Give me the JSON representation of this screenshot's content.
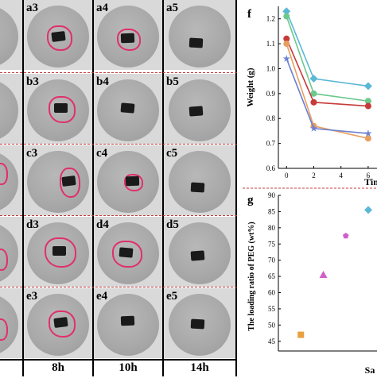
{
  "row_labels": [
    [
      "a3",
      "a4",
      "a5"
    ],
    [
      "b3",
      "b4",
      "b5"
    ],
    [
      "c3",
      "c4",
      "c5"
    ],
    [
      "d3",
      "d4",
      "d5"
    ],
    [
      "e3",
      "e4",
      "e5"
    ]
  ],
  "time_labels": [
    "8h",
    "10h",
    "14h"
  ],
  "panel_f": {
    "label": "f",
    "ylabel": "Weight (g)",
    "xlabel": "Tin",
    "yticks": [
      "0.6",
      "0.7",
      "0.8",
      "0.9",
      "1.0",
      "1.1",
      "1.2"
    ],
    "xticks": [
      "0",
      "2",
      "4",
      "6"
    ]
  },
  "panel_g": {
    "label": "g",
    "ylabel": "The loading ratio of PEG (wt%)",
    "xlabel": "Sa",
    "yticks": [
      "45",
      "50",
      "55",
      "60",
      "65",
      "70",
      "75",
      "80",
      "85",
      "90"
    ]
  },
  "chart_data": [
    {
      "type": "line",
      "title": "",
      "xlabel": "Tin",
      "ylabel": "Weight (g)",
      "ylim": [
        0.6,
        1.25
      ],
      "series": [
        {
          "color": "#5bb8d6",
          "marker": "diamond",
          "x": [
            0,
            2,
            6
          ],
          "y": [
            1.23,
            0.96,
            0.93
          ]
        },
        {
          "color": "#6dc88c",
          "marker": "circle",
          "x": [
            0,
            2,
            6
          ],
          "y": [
            1.21,
            0.9,
            0.87
          ]
        },
        {
          "color": "#c73a3a",
          "marker": "circle",
          "x": [
            0,
            2,
            6
          ],
          "y": [
            1.12,
            0.865,
            0.85
          ]
        },
        {
          "color": "#e8a060",
          "marker": "circle",
          "x": [
            0,
            2,
            6
          ],
          "y": [
            1.1,
            0.77,
            0.72
          ]
        },
        {
          "color": "#6c7fd1",
          "marker": "star",
          "x": [
            0,
            2,
            6
          ],
          "y": [
            1.04,
            0.76,
            0.74
          ]
        }
      ]
    },
    {
      "type": "scatter",
      "title": "",
      "xlabel": "Sa",
      "ylabel": "The loading ratio of PEG (wt%)",
      "ylim": [
        42,
        90
      ],
      "series": [
        {
          "color": "#e8a040",
          "marker": "square",
          "x": [
            1
          ],
          "y": [
            47
          ]
        },
        {
          "color": "#d060c8",
          "marker": "triangle",
          "x": [
            2
          ],
          "y": [
            65.5
          ]
        },
        {
          "color": "#d060c8",
          "marker": "pentagon",
          "x": [
            3
          ],
          "y": [
            77.5
          ]
        },
        {
          "color": "#5bb8d6",
          "marker": "diamond",
          "x": [
            4
          ],
          "y": [
            85.5
          ]
        }
      ]
    }
  ]
}
